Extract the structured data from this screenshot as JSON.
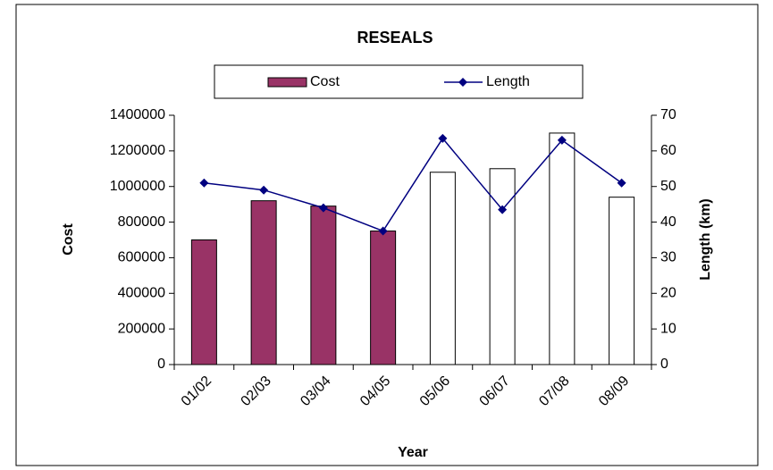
{
  "chart_data": {
    "type": "bar_line",
    "title": "RESEALS",
    "categories": [
      "01/02",
      "02/03",
      "03/04",
      "04/05",
      "05/06",
      "06/07",
      "07/08",
      "08/09"
    ],
    "series": [
      {
        "name": "Cost",
        "type": "bar",
        "axis": "y",
        "color": "#993366",
        "colors": [
          "#993366",
          "#993366",
          "#993366",
          "#993366",
          "#ffffff",
          "#ffffff",
          "#ffffff",
          "#ffffff"
        ],
        "values": [
          700000,
          920000,
          890000,
          750000,
          1080000,
          1100000,
          1300000,
          940000
        ]
      },
      {
        "name": "Length",
        "type": "line",
        "axis": "y2",
        "color": "#000080",
        "values": [
          51,
          49,
          44,
          37.5,
          63.5,
          43.5,
          63,
          51
        ]
      }
    ],
    "xlabel": "Year",
    "ylabel": "Cost",
    "y2label": "Length (km)",
    "ylim": [
      0,
      1400000
    ],
    "yticks": [
      0,
      200000,
      400000,
      600000,
      800000,
      1000000,
      1200000,
      1400000
    ],
    "y2lim": [
      0,
      70
    ],
    "y2ticks": [
      0,
      10,
      20,
      30,
      40,
      50,
      60,
      70
    ],
    "legend": "top"
  }
}
